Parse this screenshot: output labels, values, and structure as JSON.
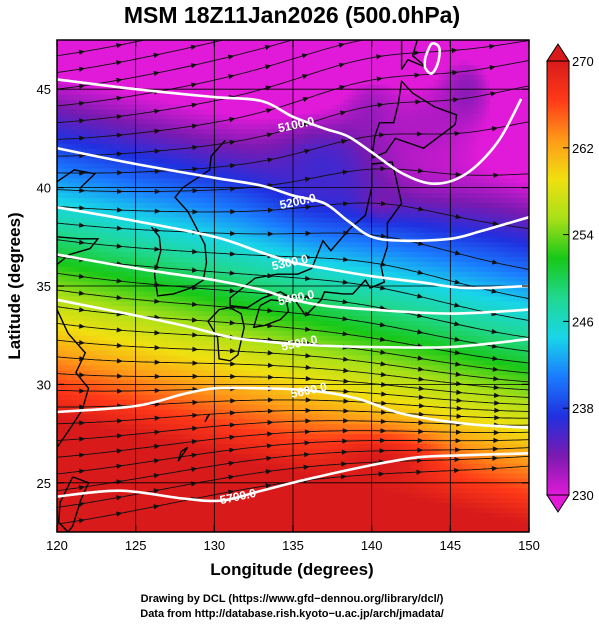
{
  "chart_data": {
    "type": "heatmap",
    "title": "MSM 18Z11Jan2026 (500.0hPa)",
    "xlabel": "Longitude (degrees)",
    "ylabel": "Latitude  (degrees)",
    "xlim": [
      120,
      150
    ],
    "ylim": [
      22.5,
      47.5
    ],
    "xticks": [
      120,
      125,
      130,
      135,
      140,
      145,
      150
    ],
    "yticks": [
      25,
      30,
      35,
      40,
      45
    ],
    "grid": true,
    "colorbar": {
      "location": "right",
      "range": [
        230,
        270
      ],
      "ticks": [
        230,
        238,
        246,
        254,
        262,
        270
      ],
      "colors": [
        "#e01ad8",
        "#7a1ab0",
        "#2030e0",
        "#1a7cff",
        "#18d6e8",
        "#20d890",
        "#18c818",
        "#a8e018",
        "#f0e010",
        "#ff9a18",
        "#ff3a18",
        "#d81a1a"
      ]
    },
    "contours": [
      {
        "label": "5100.0",
        "points": [
          [
            120,
            45.5
          ],
          [
            125,
            45.0
          ],
          [
            130,
            44.6
          ],
          [
            133,
            44.4
          ],
          [
            135,
            43.6
          ],
          [
            137,
            43.0
          ],
          [
            138.5,
            42.6
          ],
          [
            140,
            41.8
          ],
          [
            142,
            40.7
          ],
          [
            144,
            40.2
          ],
          [
            146,
            40.7
          ],
          [
            148,
            42.3
          ],
          [
            149.5,
            44.5
          ]
        ]
      },
      {
        "label": "5200.0",
        "points": [
          [
            120,
            42.0
          ],
          [
            125,
            41.2
          ],
          [
            130,
            40.5
          ],
          [
            133,
            40.1
          ],
          [
            135,
            39.6
          ],
          [
            137,
            39.2
          ],
          [
            138.5,
            38.3
          ],
          [
            140,
            37.5
          ],
          [
            142,
            37.3
          ],
          [
            145,
            37.4
          ],
          [
            147,
            37.8
          ],
          [
            150,
            38.5
          ]
        ]
      },
      {
        "label": "5300.0",
        "points": [
          [
            120,
            39.0
          ],
          [
            125,
            38.3
          ],
          [
            130,
            37.5
          ],
          [
            133,
            36.7
          ],
          [
            135,
            36.2
          ],
          [
            137,
            35.9
          ],
          [
            140,
            35.5
          ],
          [
            143,
            35.2
          ],
          [
            146,
            34.9
          ],
          [
            150,
            35.0
          ]
        ]
      },
      {
        "label": "5400.0",
        "points": [
          [
            120,
            36.6
          ],
          [
            125,
            35.9
          ],
          [
            130,
            35.3
          ],
          [
            133,
            34.8
          ],
          [
            135,
            34.3
          ],
          [
            137,
            34.0
          ],
          [
            140,
            33.8
          ],
          [
            145,
            33.6
          ],
          [
            150,
            33.8
          ]
        ]
      },
      {
        "label": "5500.0",
        "points": [
          [
            120,
            34.3
          ],
          [
            125,
            33.5
          ],
          [
            128,
            33.0
          ],
          [
            131,
            32.4
          ],
          [
            133,
            32.2
          ],
          [
            136,
            32.0
          ],
          [
            140,
            31.9
          ],
          [
            145,
            31.9
          ],
          [
            150,
            32.3
          ]
        ]
      },
      {
        "label": "5600.0",
        "points": [
          [
            120,
            28.6
          ],
          [
            125,
            28.9
          ],
          [
            128,
            29.5
          ],
          [
            130,
            29.8
          ],
          [
            133,
            29.8
          ],
          [
            136,
            29.7
          ],
          [
            139,
            29.3
          ],
          [
            142,
            28.5
          ],
          [
            146,
            28.0
          ],
          [
            150,
            27.8
          ]
        ]
      },
      {
        "label": "5700.0",
        "points": [
          [
            120,
            24.3
          ],
          [
            124,
            24.6
          ],
          [
            128,
            24.2
          ],
          [
            130.5,
            24.1
          ],
          [
            133,
            24.6
          ],
          [
            136,
            25.2
          ],
          [
            140,
            25.9
          ],
          [
            143,
            26.3
          ],
          [
            146,
            26.4
          ],
          [
            150,
            26.5
          ]
        ]
      },
      {
        "label": "",
        "points": [
          [
            143.4,
            46.6
          ],
          [
            143.8,
            47.3
          ],
          [
            144.3,
            47.1
          ],
          [
            144.2,
            46.3
          ],
          [
            143.8,
            45.8
          ],
          [
            143.4,
            46.1
          ],
          [
            143.4,
            46.6
          ]
        ]
      }
    ],
    "contour_label_positions": [
      [
        135.2,
        43.2
      ],
      [
        135.3,
        39.3
      ],
      [
        134.8,
        36.2
      ],
      [
        135.2,
        34.4
      ],
      [
        135.4,
        32.1
      ],
      [
        136.0,
        29.7
      ],
      [
        131.5,
        24.3
      ]
    ],
    "temperature_anomalies": [
      {
        "center": [
          143,
          42.8
        ],
        "value": 231,
        "spread": [
          3.5,
          3.0
        ]
      },
      {
        "center": [
          140,
          44.0
        ],
        "value": 232,
        "spread": [
          2.5,
          2.5
        ]
      },
      {
        "center": [
          146,
          45.0
        ],
        "value": 233,
        "spread": [
          3.0,
          3.0
        ]
      },
      {
        "center": [
          140.5,
          39.5
        ],
        "value": 233,
        "spread": [
          1.2,
          0.9
        ]
      },
      {
        "center": [
          137,
          41.0
        ],
        "value": 236,
        "spread": [
          3.5,
          2.5
        ]
      },
      {
        "center": [
          140.5,
          26.0
        ],
        "value": 270,
        "spread": [
          3.5,
          1.4
        ]
      }
    ],
    "streamflow": "westerly"
  },
  "credits": [
    "Drawing by DCL (https://www.gfd−dennou.org/library/dcl/)",
    "Data from http://database.rish.kyoto−u.ac.jp/arch/jmadata/"
  ]
}
